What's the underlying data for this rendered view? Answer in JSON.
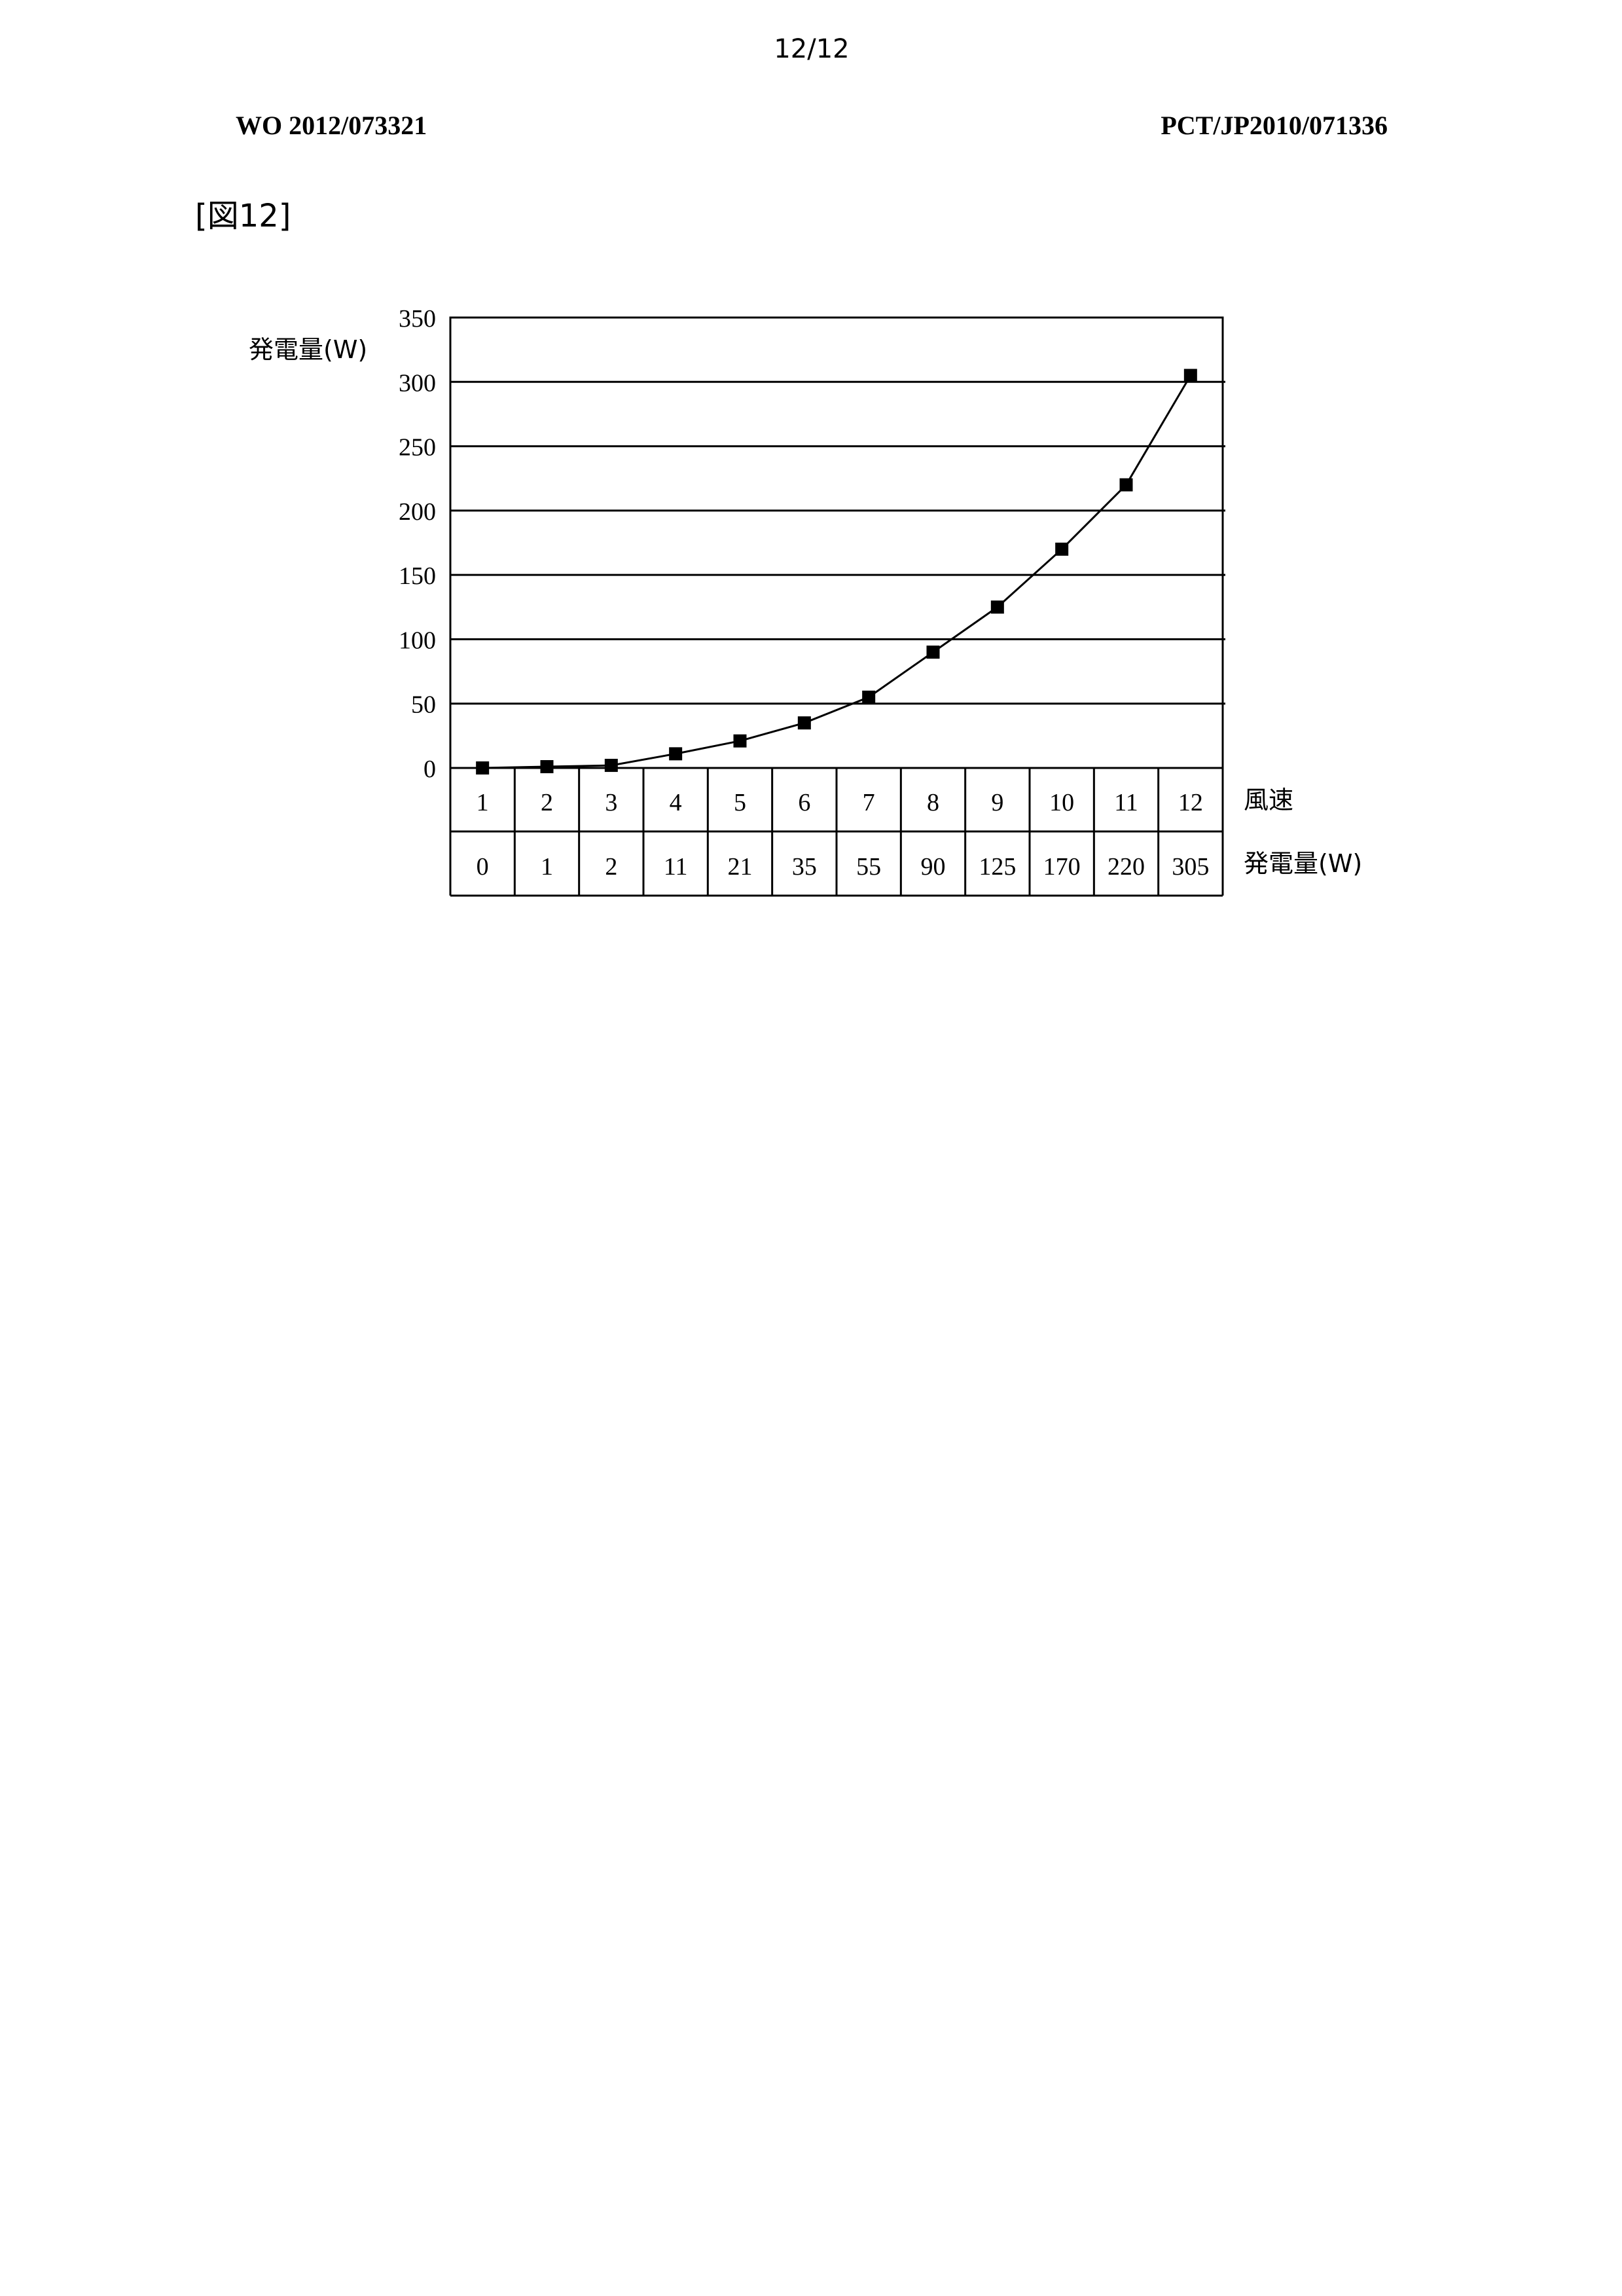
{
  "header": {
    "page_number": "12/12",
    "publication_number": "WO 2012/073321",
    "application_number": "PCT/JP2010/071336"
  },
  "figure": {
    "label": "[図12]"
  },
  "chart_data": {
    "type": "line",
    "title": "",
    "ylabel": "発電量(W)",
    "xlabel": "風速",
    "ylim": [
      0,
      350
    ],
    "y_ticks": [
      0,
      50,
      100,
      150,
      200,
      250,
      300,
      350
    ],
    "grid": true,
    "categories": [
      "1",
      "2",
      "3",
      "4",
      "5",
      "6",
      "7",
      "8",
      "9",
      "10",
      "11",
      "12"
    ],
    "series": [
      {
        "values": [
          0,
          1,
          2,
          11,
          21,
          35,
          55,
          90,
          125,
          170,
          220,
          305
        ]
      }
    ],
    "table": {
      "row_labels": [
        "風速",
        "発電量(W)"
      ],
      "rows": [
        [
          "1",
          "2",
          "3",
          "4",
          "5",
          "6",
          "7",
          "8",
          "9",
          "10",
          "11",
          "12"
        ],
        [
          "0",
          "1",
          "2",
          "11",
          "21",
          "35",
          "55",
          "90",
          "125",
          "170",
          "220",
          "305"
        ]
      ]
    },
    "marker": "filled-square",
    "line_color": "#000000"
  }
}
